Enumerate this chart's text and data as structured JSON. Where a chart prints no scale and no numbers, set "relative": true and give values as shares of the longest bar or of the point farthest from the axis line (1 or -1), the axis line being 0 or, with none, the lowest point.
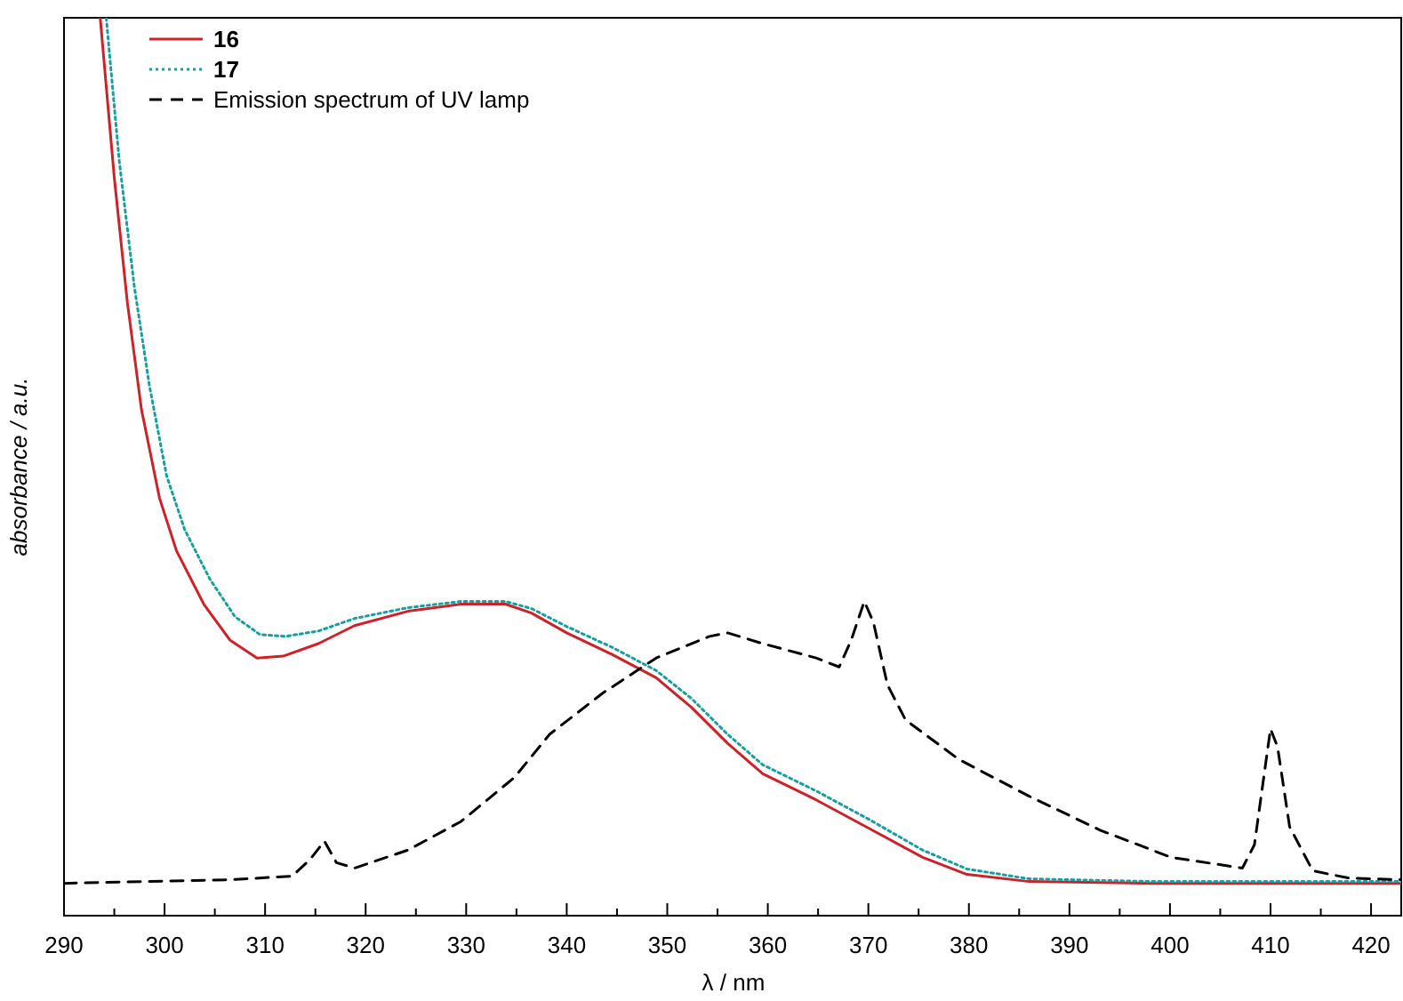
{
  "chart_data": {
    "type": "line",
    "relative": true,
    "xlabel": "λ / nm",
    "ylabel": "absorbance / a.u.",
    "xlim": [
      290,
      423
    ],
    "xticks": [
      290,
      {
        "value": 295,
        "label": null
      },
      300,
      {
        "value": 305,
        "label": null
      },
      310,
      {
        "value": 315,
        "label": null
      },
      320,
      {
        "value": 325,
        "label": null
      },
      330,
      {
        "value": 335,
        "label": null
      },
      340,
      {
        "value": 345,
        "label": null
      },
      350,
      {
        "value": 355,
        "label": null
      },
      360,
      {
        "value": 365,
        "label": null
      },
      370,
      {
        "value": 375,
        "label": null
      },
      380,
      {
        "value": 385,
        "label": null
      },
      390,
      {
        "value": 395,
        "label": null
      },
      400,
      {
        "value": 405,
        "label": null
      },
      410,
      {
        "value": 415,
        "label": null
      },
      420
    ],
    "legend": "top left",
    "grid": false,
    "marker": "none",
    "series": [
      {
        "name": "16",
        "color": "#cc2229",
        "line_style": "solid",
        "x": [
          293.6,
          295,
          296.3,
          297.7,
          299.5,
          301.2,
          303.9,
          306.5,
          309.2,
          311.8,
          315.3,
          318.9,
          324.2,
          329.5,
          333.9,
          336.5,
          340,
          344.5,
          348.9,
          352.4,
          356,
          359.5,
          364.8,
          370.1,
          375.4,
          379.8,
          386,
          398.3,
          423
        ],
        "values": [
          1.0,
          0.822,
          0.683,
          0.564,
          0.465,
          0.406,
          0.347,
          0.307,
          0.287,
          0.289,
          0.303,
          0.323,
          0.339,
          0.347,
          0.347,
          0.337,
          0.315,
          0.291,
          0.265,
          0.232,
          0.192,
          0.158,
          0.129,
          0.097,
          0.065,
          0.046,
          0.038,
          0.036,
          0.036
        ]
      },
      {
        "name": "17",
        "color": "#1a9e9e",
        "line_style": "dotted",
        "x": [
          294.2,
          295.5,
          297,
          298.5,
          300.2,
          302,
          304.5,
          307,
          309.5,
          312,
          315.3,
          318.9,
          324.2,
          329.5,
          333.9,
          336.5,
          340,
          344.5,
          348.9,
          352.4,
          356,
          359.5,
          364.8,
          370.1,
          375.4,
          379.8,
          386,
          398.3,
          423
        ],
        "values": [
          1.0,
          0.84,
          0.7,
          0.59,
          0.49,
          0.43,
          0.375,
          0.333,
          0.313,
          0.311,
          0.317,
          0.331,
          0.343,
          0.35,
          0.35,
          0.342,
          0.322,
          0.299,
          0.273,
          0.242,
          0.202,
          0.168,
          0.139,
          0.107,
          0.073,
          0.052,
          0.041,
          0.038,
          0.038
        ]
      },
      {
        "name": "Emission spectrum of UV lamp",
        "color": "#000000",
        "line_style": "dashed",
        "x": [
          290,
          306.5,
          312.7,
          314.5,
          315.9,
          317.1,
          318.9,
          324.2,
          329.5,
          334.8,
          338.3,
          343.6,
          348.9,
          354.2,
          356,
          359.5,
          364.8,
          367.1,
          368.3,
          369.6,
          370.5,
          371.9,
          373.7,
          379,
          386,
          393.1,
          400.1,
          407.2,
          408.4,
          409.5,
          410,
          410.7,
          411.9,
          414.2,
          417.7,
          423
        ],
        "values": [
          0.036,
          0.04,
          0.044,
          0.063,
          0.083,
          0.059,
          0.053,
          0.073,
          0.105,
          0.154,
          0.202,
          0.248,
          0.287,
          0.311,
          0.315,
          0.303,
          0.287,
          0.277,
          0.307,
          0.35,
          0.327,
          0.257,
          0.218,
          0.174,
          0.133,
          0.095,
          0.065,
          0.053,
          0.079,
          0.168,
          0.208,
          0.188,
          0.099,
          0.05,
          0.042,
          0.04
        ]
      }
    ]
  }
}
